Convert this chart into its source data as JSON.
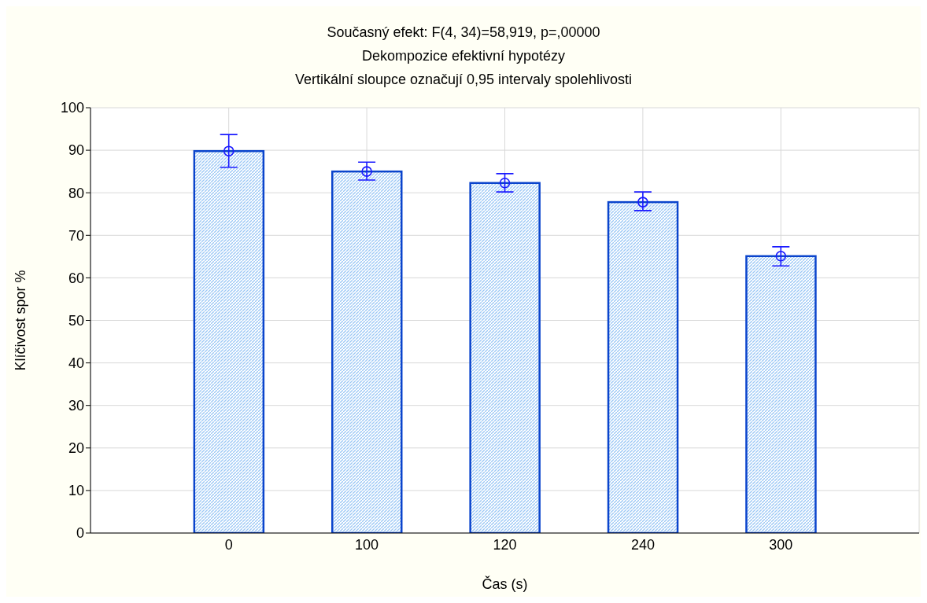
{
  "chart_data": {
    "type": "bar",
    "title": "Současný efekt: F(4, 34)=58,919, p=,00000",
    "subtitle": "Dekompozice efektivní hypotézy",
    "annotations": [
      "Vertikální sloupce označují 0,95 intervaly spolehlivosti"
    ],
    "xlabel": "Čas (s)",
    "ylabel": "Klíčivost spor %",
    "categories": [
      "0",
      "100",
      "120",
      "240",
      "300"
    ],
    "series": [
      {
        "color": "#0a44cc",
        "values": [
          89.8,
          85.0,
          82.3,
          77.8,
          65.1
        ]
      },
      {
        "type": "scatter",
        "color": "#1a1aff",
        "x": [
          "0",
          "100",
          "120",
          "240",
          "300"
        ],
        "values": [
          89.8,
          85.0,
          82.3,
          77.8,
          65.1
        ],
        "errors": [
          [
            86.0,
            93.7
          ],
          [
            83.0,
            87.2
          ],
          [
            80.2,
            84.5
          ],
          [
            75.8,
            80.2
          ],
          [
            62.8,
            67.3
          ]
        ]
      }
    ],
    "marker": "circle",
    "ylim": [
      0,
      100
    ],
    "yticks": [
      0,
      10,
      20,
      30,
      40,
      50,
      60,
      70,
      80,
      90,
      100
    ],
    "grid": true
  }
}
